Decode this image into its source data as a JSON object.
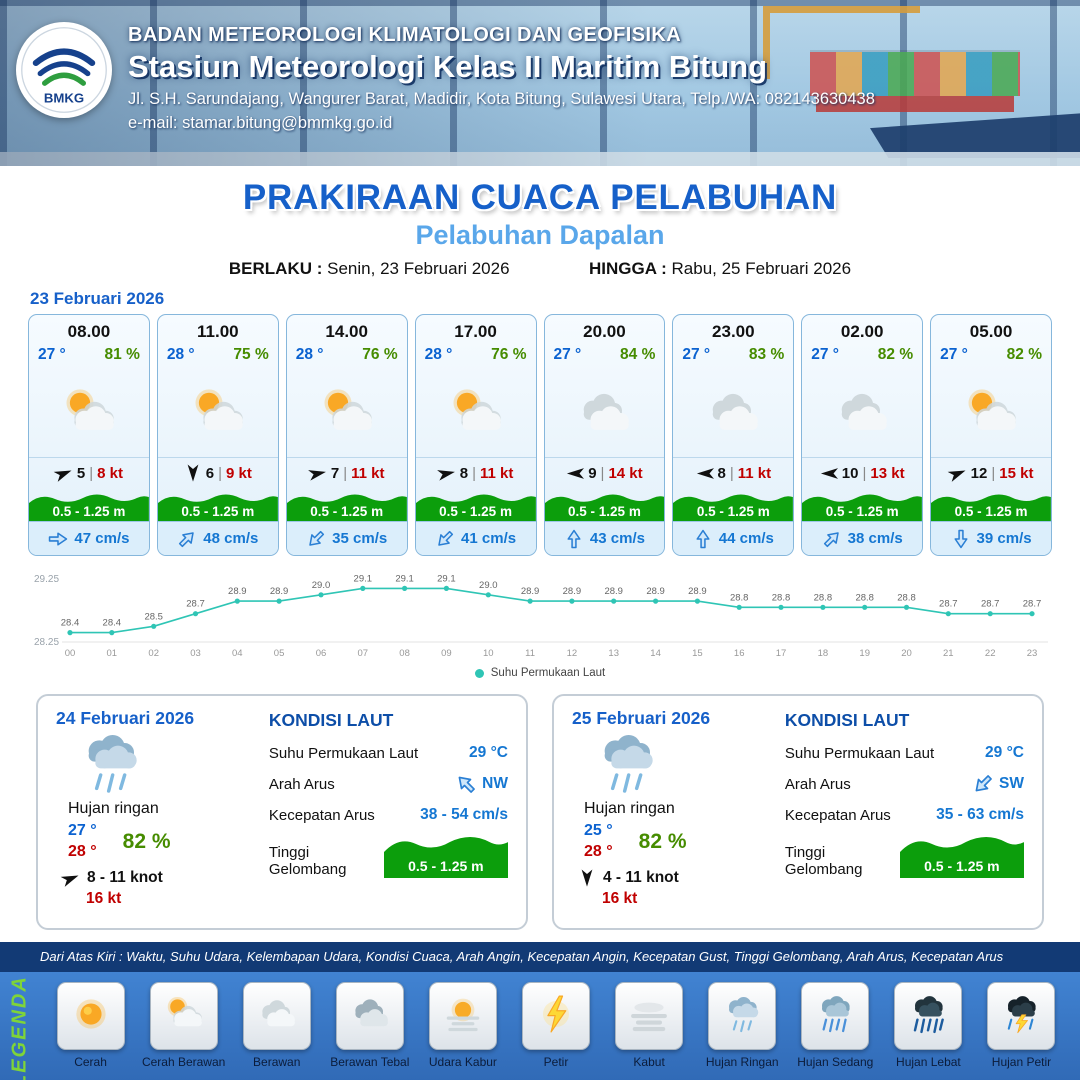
{
  "header": {
    "org": "BADAN METEOROLOGI KLIMATOLOGI DAN GEOFISIKA",
    "station": "Stasiun Meteorologi Kelas II Maritim Bitung",
    "address": "Jl. S.H. Sarundajang, Wangurer Barat, Madidir, Kota Bitung, Sulawesi Utara, Telp./WA: 082143630438",
    "email": "e-mail: stamar.bitung@bmmkg.go.id",
    "logo": "BMKG"
  },
  "title": {
    "main": "PRAKIRAAN CUACA PELABUHAN",
    "port": "Pelabuhan Dapalan",
    "valid_label": "BERLAKU :",
    "valid_value": "Senin, 23 Februari 2026",
    "until_label": "HINGGA :",
    "until_value": "Rabu, 25 Februari 2026"
  },
  "colors": {
    "accent_blue": "#1660c9",
    "light_blue": "#5aa7ea",
    "temp_blue": "#0b62d0",
    "humidity_green": "#468c00",
    "gust_red": "#c00000",
    "wave_green": "#0c9e0c",
    "sst_line": "#2fc5b5"
  },
  "forecast": {
    "date": "23 Februari 2026",
    "cards": [
      {
        "time": "08.00",
        "temp": "27 °",
        "humidity": "81 %",
        "icon": "cerah-berawan",
        "wind_speed": "5",
        "gust": "8 kt",
        "wind_deg": -22,
        "wave": "0.5 - 1.25 m",
        "current": "47 cm/s",
        "current_deg": 0
      },
      {
        "time": "11.00",
        "temp": "28 °",
        "humidity": "75 %",
        "icon": "cerah-berawan",
        "wind_speed": "6",
        "gust": "9 kt",
        "wind_deg": 90,
        "wave": "0.5 - 1.25 m",
        "current": "48 cm/s",
        "current_deg": -45
      },
      {
        "time": "14.00",
        "temp": "28 °",
        "humidity": "76 %",
        "icon": "cerah-berawan",
        "wind_speed": "7",
        "gust": "11 kt",
        "wind_deg": -12,
        "wave": "0.5 - 1.25 m",
        "current": "35 cm/s",
        "current_deg": 135
      },
      {
        "time": "17.00",
        "temp": "28 °",
        "humidity": "76 %",
        "icon": "cerah-berawan",
        "wind_speed": "8",
        "gust": "11 kt",
        "wind_deg": -12,
        "wave": "0.5 - 1.25 m",
        "current": "41 cm/s",
        "current_deg": 135
      },
      {
        "time": "20.00",
        "temp": "27 °",
        "humidity": "84 %",
        "icon": "berawan",
        "wind_speed": "9",
        "gust": "14 kt",
        "wind_deg": 180,
        "wave": "0.5 - 1.25 m",
        "current": "43 cm/s",
        "current_deg": -90
      },
      {
        "time": "23.00",
        "temp": "27 °",
        "humidity": "83 %",
        "icon": "berawan",
        "wind_speed": "8",
        "gust": "11 kt",
        "wind_deg": 180,
        "wave": "0.5 - 1.25 m",
        "current": "44 cm/s",
        "current_deg": -90
      },
      {
        "time": "02.00",
        "temp": "27 °",
        "humidity": "82 %",
        "icon": "berawan",
        "wind_speed": "10",
        "gust": "13 kt",
        "wind_deg": 180,
        "wave": "0.5 - 1.25 m",
        "current": "38 cm/s",
        "current_deg": -45
      },
      {
        "time": "05.00",
        "temp": "27 °",
        "humidity": "82 %",
        "icon": "cerah-berawan",
        "wind_speed": "12",
        "gust": "15 kt",
        "wind_deg": -22,
        "wave": "0.5 - 1.25 m",
        "current": "39 cm/s",
        "current_deg": 90
      }
    ]
  },
  "chart_data": {
    "type": "line",
    "title": "Suhu Permukaan Laut",
    "legend": "Suhu Permukaan Laut",
    "x": [
      "00",
      "01",
      "02",
      "03",
      "04",
      "05",
      "06",
      "07",
      "08",
      "09",
      "10",
      "11",
      "12",
      "13",
      "14",
      "15",
      "16",
      "17",
      "18",
      "19",
      "20",
      "21",
      "22",
      "23"
    ],
    "values": [
      28.4,
      28.4,
      28.5,
      28.7,
      28.9,
      28.9,
      29.0,
      29.1,
      29.1,
      29.1,
      29.0,
      28.9,
      28.9,
      28.9,
      28.9,
      28.9,
      28.8,
      28.8,
      28.8,
      28.8,
      28.8,
      28.7,
      28.7,
      28.7
    ],
    "ylim": [
      28.25,
      29.25
    ],
    "yticks": [
      "29.25",
      "28.25"
    ],
    "line_color": "#2fc5b5",
    "grid": false,
    "legend_position": "bottom"
  },
  "days": [
    {
      "date": "24 Februari 2026",
      "icon": "hujan-ringan",
      "condition": "Hujan ringan",
      "temp_min": "27 °",
      "temp_max": "28 °",
      "humidity": "82 %",
      "wind": "8  - 11 knot",
      "wind_deg": -22,
      "gust": "16 kt",
      "sea_title": "KONDISI LAUT",
      "sst_label": "Suhu Permukaan Laut",
      "sst": "29 °C",
      "arus_dir_label": "Arah Arus",
      "arus_dir": "NW",
      "arus_deg": -135,
      "arus_speed_label": "Kecepatan Arus",
      "arus_speed": "38 - 54 cm/s",
      "wave_label": "Tinggi Gelombang",
      "wave": "0.5 - 1.25 m"
    },
    {
      "date": "25 Februari 2026",
      "icon": "hujan-ringan",
      "condition": "Hujan ringan",
      "temp_min": "25 °",
      "temp_max": "28 °",
      "humidity": "82 %",
      "wind": "4  - 11 knot",
      "wind_deg": 90,
      "gust": "16 kt",
      "sea_title": "KONDISI LAUT",
      "sst_label": "Suhu Permukaan Laut",
      "sst": "29 °C",
      "arus_dir_label": "Arah Arus",
      "arus_dir": "SW",
      "arus_deg": 135,
      "arus_speed_label": "Kecepatan Arus",
      "arus_speed": "35 - 63 cm/s",
      "wave_label": "Tinggi Gelombang",
      "wave": "0.5 - 1.25 m"
    }
  ],
  "legend": {
    "title": "LEGENDA",
    "note": "Dari Atas Kiri : Waktu, Suhu Udara, Kelembapan Udara, Kondisi Cuaca, Arah Angin, Kecepatan Angin, Kecepatan Gust, Tinggi Gelombang, Arah Arus, Kecepatan Arus",
    "items": [
      {
        "label": "Cerah",
        "icon": "cerah"
      },
      {
        "label": "Cerah Berawan",
        "icon": "cerah-berawan"
      },
      {
        "label": "Berawan",
        "icon": "berawan"
      },
      {
        "label": "Berawan Tebal",
        "icon": "berawan-tebal"
      },
      {
        "label": "Udara Kabur",
        "icon": "udara-kabur"
      },
      {
        "label": "Petir",
        "icon": "petir"
      },
      {
        "label": "Kabut",
        "icon": "kabut"
      },
      {
        "label": "Hujan Ringan",
        "icon": "hujan-ringan"
      },
      {
        "label": "Hujan Sedang",
        "icon": "hujan-sedang"
      },
      {
        "label": "Hujan Lebat",
        "icon": "hujan-lebat"
      },
      {
        "label": "Hujan Petir",
        "icon": "hujan-petir"
      }
    ]
  }
}
